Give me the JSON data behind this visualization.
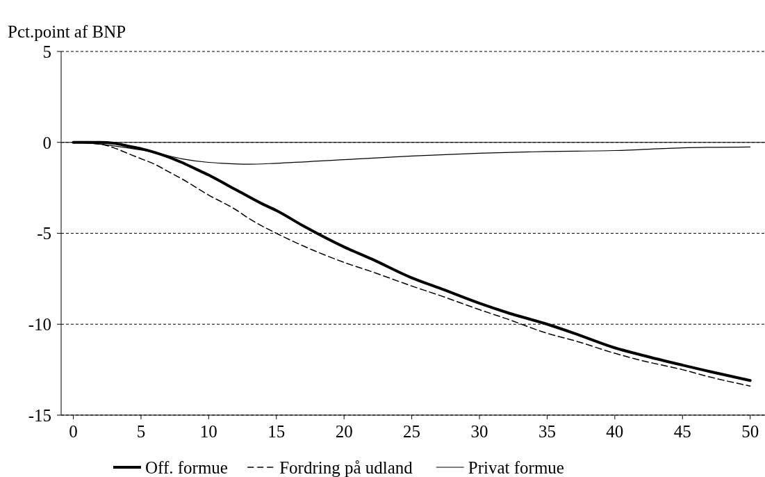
{
  "chart_data": {
    "type": "line",
    "ylabel": "Pct.point af BNP",
    "xlim": [
      -0.9,
      51.3
    ],
    "xticks": [
      0,
      5,
      10,
      15,
      20,
      25,
      30,
      35,
      40,
      45,
      50
    ],
    "ylim": [
      -15,
      5
    ],
    "yticks": [
      -15,
      -10,
      -5,
      0,
      5
    ],
    "grid": "y",
    "legend": "bottom",
    "marker": "none",
    "ref_lines": [
      {
        "axis": "y",
        "value": 0,
        "color": "#000000",
        "line_style": "solid"
      }
    ],
    "series": [
      {
        "name": "Off. formue",
        "color": "#000000",
        "line_style": "solid",
        "x": [
          0,
          1,
          2,
          3,
          4,
          5,
          6,
          7,
          8,
          9,
          10,
          12,
          14,
          15,
          17,
          20,
          22,
          25,
          27,
          30,
          32,
          35,
          37,
          40,
          42,
          45,
          47,
          50
        ],
        "values": [
          0,
          0,
          0,
          -0.05,
          -0.2,
          -0.35,
          -0.55,
          -0.8,
          -1.1,
          -1.45,
          -1.8,
          -2.6,
          -3.4,
          -3.75,
          -4.6,
          -5.75,
          -6.4,
          -7.45,
          -8.0,
          -8.85,
          -9.35,
          -10.0,
          -10.5,
          -11.3,
          -11.7,
          -12.25,
          -12.6,
          -13.1
        ]
      },
      {
        "name": "Fordring på udland",
        "color": "#000000",
        "line_style": "dashed",
        "x": [
          0,
          2,
          3,
          4,
          5,
          6,
          7,
          8,
          10,
          12,
          13,
          15,
          17,
          20,
          22,
          25,
          27,
          30,
          32,
          35,
          37,
          40,
          42,
          45,
          47,
          50
        ],
        "values": [
          0,
          -0.1,
          -0.3,
          -0.6,
          -0.9,
          -1.2,
          -1.6,
          -2.0,
          -2.9,
          -3.7,
          -4.2,
          -5.0,
          -5.7,
          -6.6,
          -7.1,
          -7.9,
          -8.4,
          -9.2,
          -9.7,
          -10.5,
          -10.9,
          -11.6,
          -12.0,
          -12.5,
          -12.9,
          -13.4
        ]
      },
      {
        "name": "Privat formue",
        "color": "#000000",
        "line_style": "solid",
        "x": [
          0,
          2,
          4,
          6,
          8,
          10,
          11,
          13,
          15,
          20,
          25,
          30,
          35,
          40,
          45,
          50
        ],
        "values": [
          0,
          -0.1,
          -0.3,
          -0.55,
          -0.9,
          -1.1,
          -1.15,
          -1.2,
          -1.15,
          -0.95,
          -0.75,
          -0.6,
          -0.5,
          -0.45,
          -0.3,
          -0.25
        ]
      }
    ]
  }
}
